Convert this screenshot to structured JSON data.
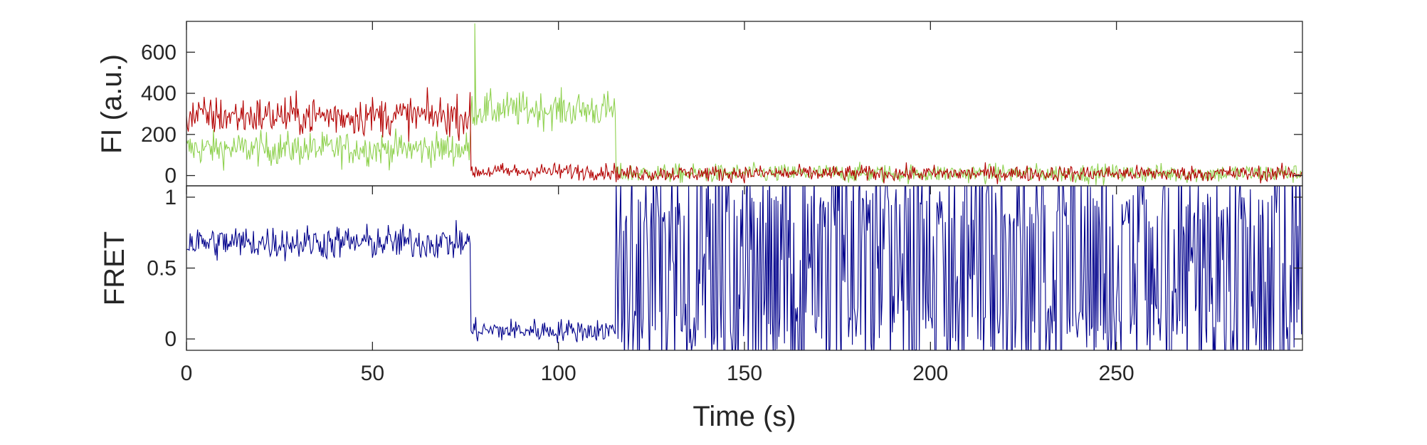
{
  "chart_data": [
    {
      "type": "line",
      "panel": "fluorescence",
      "ylabel": "FI (a.u.)",
      "xlabel": "",
      "xlim": [
        0,
        300
      ],
      "ylim": [
        -50,
        750
      ],
      "yticks": [
        0,
        200,
        400,
        600
      ],
      "grid": false,
      "legend": "none",
      "colors": {
        "donor": "#8fd14f",
        "acceptor": "#b30000"
      },
      "series": [
        {
          "color": "#8fd14f",
          "segments": [
            {
              "x_start": 0,
              "x_end": 76.5,
              "mean": 130,
              "noise": 80
            },
            {
              "x_start": 76.5,
              "x_end": 115.5,
              "mean": 320,
              "noise": 85
            },
            {
              "x_start": 115.5,
              "x_end": 300,
              "mean": 10,
              "noise": 45
            }
          ],
          "peak": {
            "x": 77.5,
            "y": 740
          }
        },
        {
          "color": "#b30000",
          "segments": [
            {
              "x_start": 0,
              "x_end": 76.5,
              "mean": 290,
              "noise": 95
            },
            {
              "x_start": 76.5,
              "x_end": 115.5,
              "mean": 20,
              "noise": 40
            },
            {
              "x_start": 115.5,
              "x_end": 300,
              "mean": 10,
              "noise": 38
            }
          ]
        }
      ]
    },
    {
      "type": "line",
      "panel": "fret",
      "ylabel": "FRET",
      "xlabel": "Time (s)",
      "xlim": [
        0,
        300
      ],
      "ylim": [
        -0.08,
        1.08
      ],
      "xticks": [
        0,
        50,
        100,
        150,
        200,
        250
      ],
      "yticks": [
        0,
        0.5,
        1
      ],
      "ytick_labels": [
        "0",
        "0.5",
        "1"
      ],
      "grid": false,
      "legend": "none",
      "colors": {
        "fret": "#00008b"
      },
      "series": [
        {
          "color": "#00008b",
          "segments": [
            {
              "x_start": 0,
              "x_end": 76.5,
              "mean": 0.68,
              "noise": 0.12
            },
            {
              "x_start": 76.5,
              "x_end": 115.5,
              "mean": 0.06,
              "noise": 0.08
            },
            {
              "x_start": 115.5,
              "x_end": 300,
              "mean": 0.5,
              "noise": 0.7,
              "clipped": true
            }
          ]
        }
      ]
    }
  ]
}
